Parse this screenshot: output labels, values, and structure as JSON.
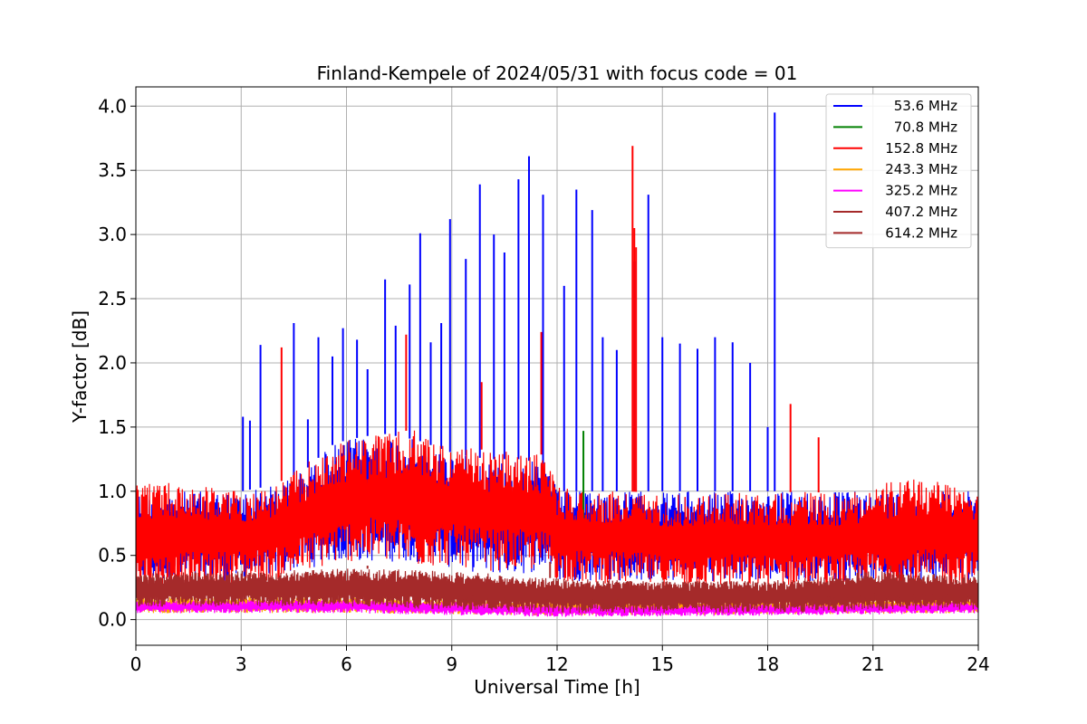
{
  "chart_data": {
    "type": "line",
    "title": "Finland-Kempele of 2024/05/31 with focus code = 01",
    "xlabel": "Universal Time [h]",
    "ylabel": "Y-factor [dB]",
    "xlim": [
      0,
      24
    ],
    "ylim": [
      -0.2,
      4.15
    ],
    "xticks": [
      0,
      3,
      6,
      9,
      12,
      15,
      18,
      21,
      24
    ],
    "xtick_labels": [
      "0",
      "3",
      "6",
      "9",
      "12",
      "15",
      "18",
      "21",
      "24"
    ],
    "yticks": [
      0.0,
      0.5,
      1.0,
      1.5,
      2.0,
      2.5,
      3.0,
      3.5,
      4.0
    ],
    "ytick_labels": [
      "0.0",
      "0.5",
      "1.0",
      "1.5",
      "2.0",
      "2.5",
      "3.0",
      "3.5",
      "4.0"
    ],
    "grid": true,
    "legend_position": "top-right",
    "series": [
      {
        "name": "53.6 MHz",
        "color": "#0000ff",
        "band_x": [
          0,
          3,
          4,
          5,
          5.5,
          6,
          7,
          8,
          9,
          10,
          11,
          11.8,
          12,
          14,
          15,
          16,
          17,
          17.5,
          18,
          24
        ],
        "band_low": [
          0.3,
          0.3,
          0.35,
          0.4,
          0.45,
          0.45,
          0.45,
          0.45,
          0.4,
          0.35,
          0.35,
          0.4,
          0.3,
          0.3,
          0.3,
          0.3,
          0.3,
          0.3,
          0.3,
          0.3
        ],
        "band_high": [
          1.0,
          1.0,
          1.05,
          1.2,
          1.35,
          1.4,
          1.45,
          1.4,
          1.3,
          1.25,
          1.25,
          1.2,
          1.0,
          1.0,
          1.0,
          1.0,
          1.0,
          1.0,
          1.0,
          1.0
        ],
        "spikes": [
          [
            3.05,
            1.58
          ],
          [
            3.25,
            1.55
          ],
          [
            3.55,
            2.14
          ],
          [
            4.5,
            2.31
          ],
          [
            4.9,
            1.56
          ],
          [
            5.2,
            2.2
          ],
          [
            5.6,
            2.05
          ],
          [
            5.9,
            2.27
          ],
          [
            6.3,
            2.18
          ],
          [
            6.6,
            1.95
          ],
          [
            7.1,
            2.65
          ],
          [
            7.4,
            2.29
          ],
          [
            7.8,
            2.61
          ],
          [
            8.1,
            3.01
          ],
          [
            8.4,
            2.16
          ],
          [
            8.7,
            2.31
          ],
          [
            8.95,
            3.12
          ],
          [
            9.4,
            2.81
          ],
          [
            9.8,
            3.39
          ],
          [
            10.2,
            3.0
          ],
          [
            10.5,
            2.86
          ],
          [
            10.9,
            3.43
          ],
          [
            11.2,
            3.61
          ],
          [
            11.6,
            3.31
          ],
          [
            12.2,
            2.6
          ],
          [
            12.55,
            3.35
          ],
          [
            13.0,
            3.19
          ],
          [
            13.3,
            2.2
          ],
          [
            13.7,
            2.1
          ],
          [
            14.2,
            2.79
          ],
          [
            14.6,
            3.31
          ],
          [
            15.0,
            2.2
          ],
          [
            15.5,
            2.15
          ],
          [
            16.0,
            2.11
          ],
          [
            16.5,
            2.2
          ],
          [
            17.0,
            2.16
          ],
          [
            17.5,
            2.0
          ],
          [
            18.0,
            1.5
          ],
          [
            18.2,
            3.95
          ]
        ]
      },
      {
        "name": "70.8 MHz",
        "color": "#008000",
        "band_x": [
          14.15,
          14.2,
          14.25
        ],
        "band_low": [
          0.5,
          0.5,
          0.5
        ],
        "band_high": [
          0.78,
          0.78,
          0.78
        ],
        "spikes": [
          [
            12.75,
            1.47
          ]
        ]
      },
      {
        "name": "152.8 MHz",
        "color": "#ff0000",
        "band_x": [
          0,
          2,
          3,
          4,
          5,
          6,
          7,
          8,
          9,
          10,
          11,
          11.8,
          12,
          13,
          14,
          15,
          16,
          17,
          18,
          19,
          20,
          21,
          22,
          23,
          24
        ],
        "band_low": [
          0.2,
          0.25,
          0.3,
          0.3,
          0.38,
          0.45,
          0.45,
          0.4,
          0.42,
          0.38,
          0.38,
          0.38,
          0.3,
          0.28,
          0.28,
          0.25,
          0.25,
          0.25,
          0.25,
          0.25,
          0.25,
          0.25,
          0.25,
          0.25,
          0.25
        ],
        "band_high": [
          1.1,
          1.05,
          1.0,
          1.05,
          1.25,
          1.4,
          1.45,
          1.48,
          1.35,
          1.32,
          1.3,
          1.28,
          1.05,
          1.0,
          1.0,
          0.98,
          0.98,
          1.0,
          0.98,
          1.0,
          0.98,
          1.05,
          1.1,
          1.1,
          1.05
        ],
        "spikes": [
          [
            4.15,
            2.12
          ],
          [
            7.7,
            2.22
          ],
          [
            9.85,
            1.85
          ],
          [
            11.55,
            2.24
          ],
          [
            14.15,
            3.69
          ],
          [
            14.2,
            3.05
          ],
          [
            14.25,
            2.9
          ],
          [
            18.65,
            1.68
          ],
          [
            19.45,
            1.42
          ]
        ]
      },
      {
        "name": "243.3 MHz",
        "color": "#ffa500",
        "band_x": [
          0,
          6,
          12,
          18,
          24
        ],
        "band_low": [
          0.05,
          0.05,
          0.03,
          0.04,
          0.05
        ],
        "band_high": [
          0.18,
          0.18,
          0.15,
          0.15,
          0.18
        ],
        "spikes": []
      },
      {
        "name": "325.2 MHz",
        "color": "#ff00ff",
        "band_x": [
          0,
          6,
          12,
          18,
          24
        ],
        "band_low": [
          0.05,
          0.05,
          0.02,
          0.03,
          0.05
        ],
        "band_high": [
          0.15,
          0.16,
          0.12,
          0.12,
          0.14
        ],
        "spikes": []
      },
      {
        "name": "407.2 MHz",
        "color": "#a52a2a",
        "band_x": [
          0,
          6,
          12,
          18,
          24
        ],
        "band_low": [
          0.1,
          0.1,
          0.05,
          0.05,
          0.08
        ],
        "band_high": [
          0.35,
          0.38,
          0.3,
          0.3,
          0.32
        ],
        "spikes": []
      },
      {
        "name": "614.2 MHz",
        "color": "#a52a2a",
        "band_x": [
          0,
          3,
          6,
          9,
          12,
          15,
          18,
          21,
          24
        ],
        "band_low": [
          0.12,
          0.12,
          0.12,
          0.1,
          0.08,
          0.08,
          0.08,
          0.12,
          0.12
        ],
        "band_high": [
          0.36,
          0.38,
          0.4,
          0.38,
          0.32,
          0.3,
          0.3,
          0.38,
          0.35
        ],
        "spikes": [
          [
            6.6,
            0.42
          ],
          [
            11.8,
            0.45
          ],
          [
            21.5,
            0.42
          ]
        ]
      }
    ]
  }
}
